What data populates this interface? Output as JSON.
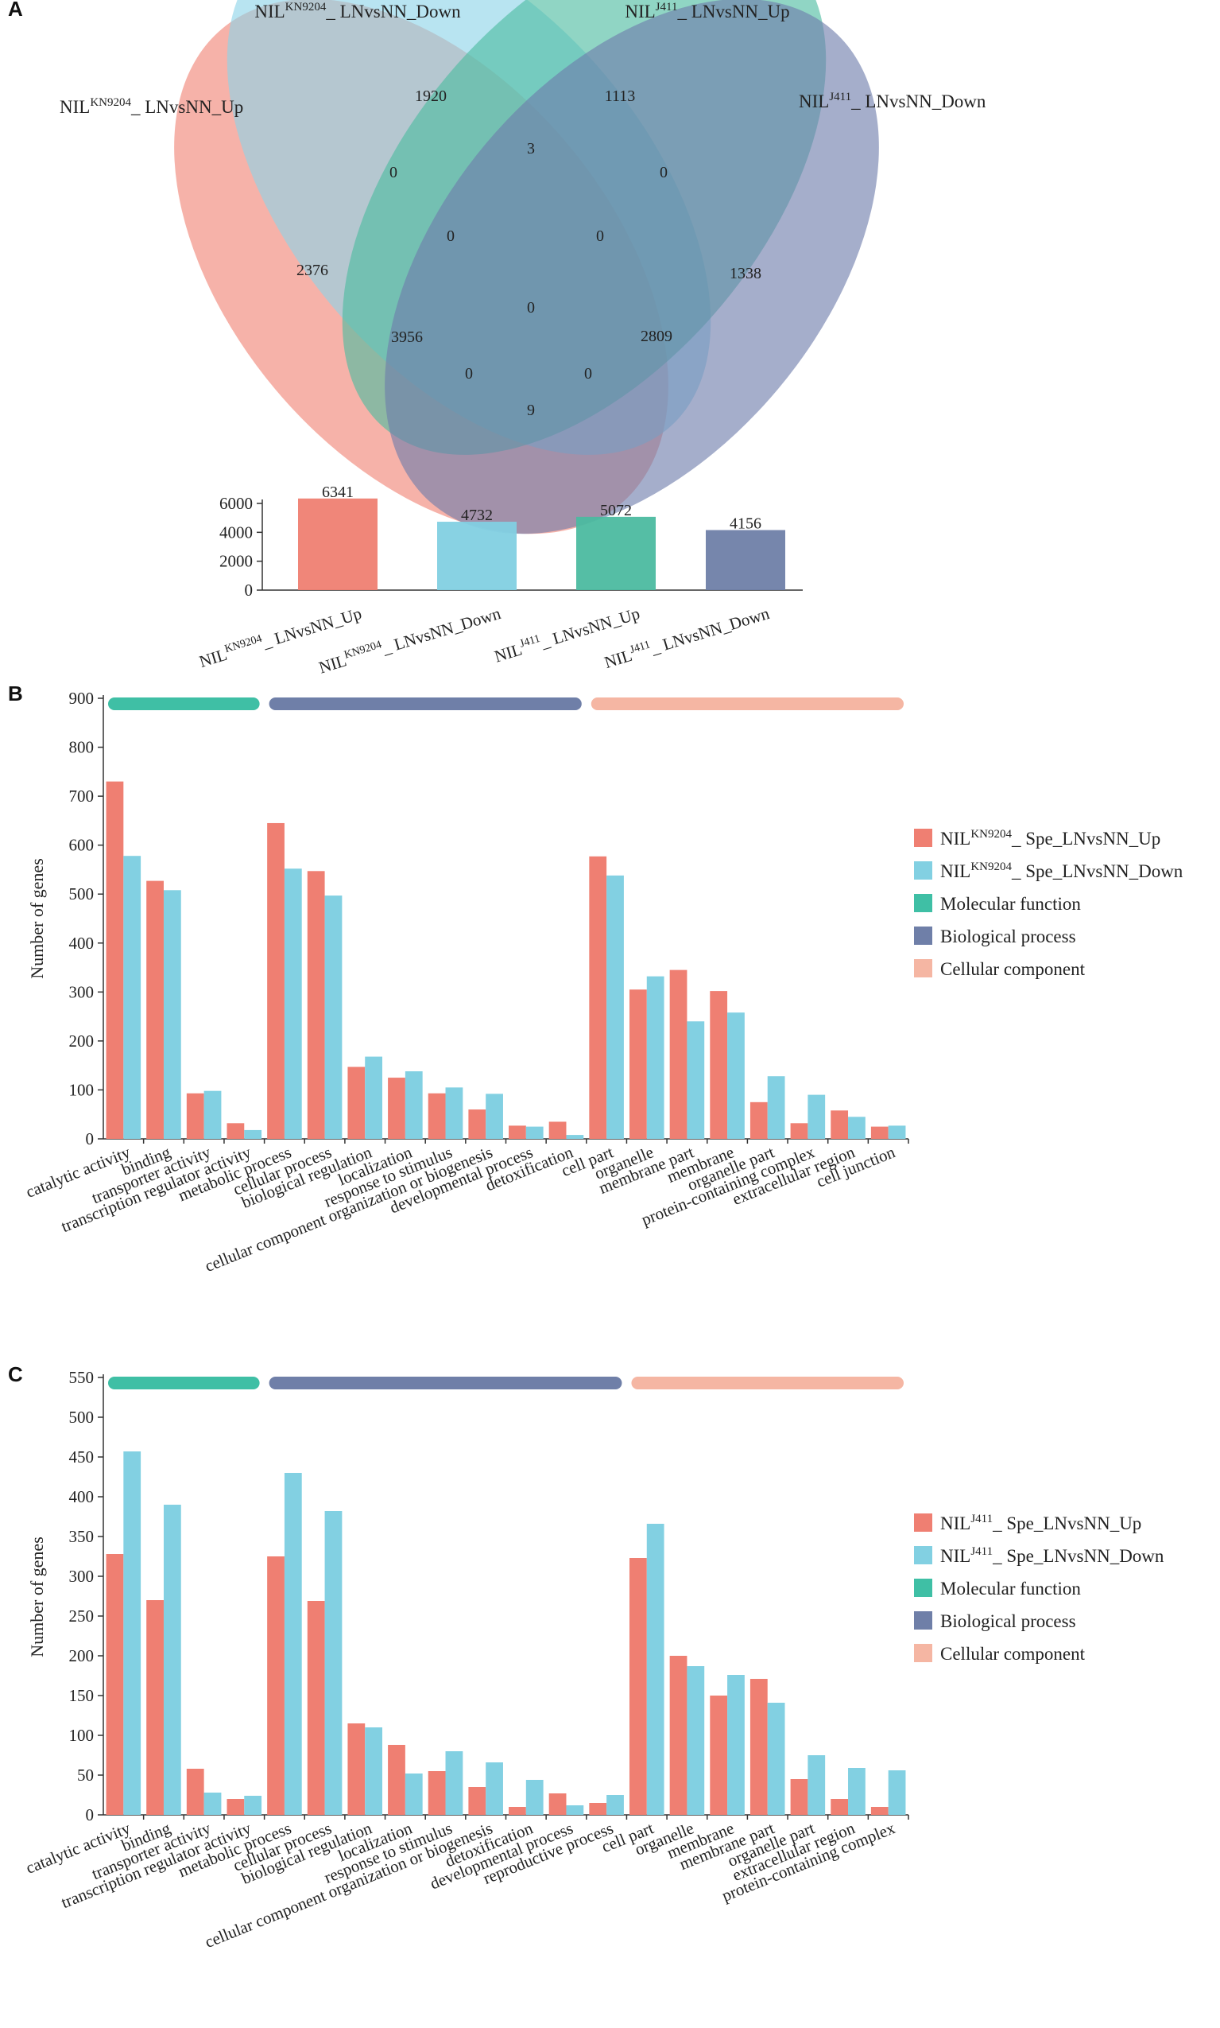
{
  "panel_labels": [
    "A",
    "B",
    "C"
  ],
  "colors": {
    "red": "#ef7f72",
    "blue": "#82d0e2",
    "green": "#3fbfa5",
    "navy": "#6f7fa8",
    "peach": "#f5b6a3",
    "venn_red": "#f08374",
    "venn_blue": "#8dd3e8",
    "venn_green": "#4cbba0",
    "venn_navy": "#6e7cab"
  },
  "chart_data": [
    {
      "type": "venn",
      "sets": [
        {
          "base": "NIL",
          "sup": "KN9204",
          "suffix": "_ LNvsNN_Up"
        },
        {
          "base": "NIL",
          "sup": "KN9204",
          "suffix": "_ LNvsNN_Down"
        },
        {
          "base": "NIL",
          "sup": "J411",
          "suffix": "_ LNvsNN_Up"
        },
        {
          "base": "NIL",
          "sup": "J411",
          "suffix": "_ LNvsNN_Down"
        }
      ],
      "regions": [
        {
          "key": "A_only",
          "label": "2376"
        },
        {
          "key": "B_only",
          "label": "1920"
        },
        {
          "key": "C_only",
          "label": "1113"
        },
        {
          "key": "D_only",
          "label": "1338"
        },
        {
          "key": "BC",
          "label": "3"
        },
        {
          "key": "AB",
          "label": "0"
        },
        {
          "key": "CD",
          "label": "0"
        },
        {
          "key": "ABC",
          "label": "0"
        },
        {
          "key": "BCD",
          "label": "0"
        },
        {
          "key": "ABCD",
          "label": "0"
        },
        {
          "key": "AC",
          "label": "3956"
        },
        {
          "key": "BD",
          "label": "2809"
        },
        {
          "key": "ACD",
          "label": "0"
        },
        {
          "key": "ABD",
          "label": "0"
        },
        {
          "key": "AD",
          "label": "9"
        }
      ]
    },
    {
      "type": "bar",
      "categories": [
        {
          "base": "NIL",
          "sup": "KN9204",
          "suffix": "_ LNvsNN_Up"
        },
        {
          "base": "NIL",
          "sup": "KN9204",
          "suffix": "_ LNvsNN_Down"
        },
        {
          "base": "NIL",
          "sup": "J411",
          "suffix": "_ LNvsNN_Up"
        },
        {
          "base": "NIL",
          "sup": "J411",
          "suffix": "_ LNvsNN_Down"
        }
      ],
      "values": [
        6341,
        4732,
        5072,
        4156
      ],
      "ylim": [
        0,
        6000
      ],
      "yticks": [
        "0",
        "2000",
        "4000",
        "6000"
      ]
    },
    {
      "type": "bar",
      "ylabel": "Number of genes",
      "ylim": [
        0,
        900
      ],
      "yticks": [
        "0",
        "100",
        "200",
        "300",
        "400",
        "500",
        "600",
        "700",
        "800",
        "900"
      ],
      "categories": [
        "catalytic activity",
        "binding",
        "transporter activity",
        "transcription regulator activity",
        "metabolic process",
        "cellular process",
        "biological regulation",
        "localization",
        "response to stimulus",
        "cellular component organization or biogenesis",
        "developmental process",
        "detoxification",
        "cell part",
        "organelle",
        "membrane part",
        "membrane",
        "organelle part",
        "protein-containing complex",
        "extracellular region",
        "cell junction"
      ],
      "groups": [
        {
          "name": "Molecular function",
          "start": 0,
          "end": 3
        },
        {
          "name": "Biological process",
          "start": 4,
          "end": 11
        },
        {
          "name": "Cellular component",
          "start": 12,
          "end": 19
        }
      ],
      "series": [
        {
          "name": {
            "base": "NIL",
            "sup": "KN9204",
            "suffix": "_ Spe_LNvsNN_Up"
          },
          "values": [
            730,
            527,
            93,
            32,
            645,
            547,
            147,
            125,
            93,
            60,
            27,
            35,
            577,
            305,
            345,
            302,
            75,
            32,
            58,
            25
          ]
        },
        {
          "name": {
            "base": "NIL",
            "sup": "KN9204",
            "suffix": "_ Spe_LNvsNN_Down"
          },
          "values": [
            578,
            508,
            98,
            18,
            552,
            497,
            168,
            138,
            105,
            92,
            25,
            8,
            538,
            332,
            240,
            258,
            128,
            90,
            45,
            27
          ]
        }
      ],
      "legend": [
        {
          "base": "NIL",
          "sup": "KN9204",
          "suffix": "_ Spe_LNvsNN_Up"
        },
        {
          "base": "NIL",
          "sup": "KN9204",
          "suffix": "_ Spe_LNvsNN_Down"
        },
        {
          "base": "Molecular function",
          "sup": "",
          "suffix": ""
        },
        {
          "base": "Biological process",
          "sup": "",
          "suffix": ""
        },
        {
          "base": "Cellular component",
          "sup": "",
          "suffix": ""
        }
      ],
      "legend_position": "right"
    },
    {
      "type": "bar",
      "ylabel": "Number of genes",
      "ylim": [
        0,
        550
      ],
      "yticks": [
        "0",
        "50",
        "100",
        "150",
        "200",
        "250",
        "300",
        "350",
        "400",
        "450",
        "500",
        "550"
      ],
      "categories": [
        "catalytic activity",
        "binding",
        "transporter activity",
        "transcription regulator activity",
        "metabolic process",
        "cellular process",
        "biological regulation",
        "localization",
        "response to stimulus",
        "cellular component organization or biogenesis",
        "detoxification",
        "developmental process",
        "reproductive process",
        "cell part",
        "organelle",
        "membrane",
        "membrane part",
        "organelle part",
        "extracellular region",
        "protein-containing complex"
      ],
      "groups": [
        {
          "name": "Molecular function",
          "start": 0,
          "end": 3
        },
        {
          "name": "Biological process",
          "start": 4,
          "end": 12
        },
        {
          "name": "Cellular component",
          "start": 13,
          "end": 19
        }
      ],
      "series": [
        {
          "name": {
            "base": "NIL",
            "sup": "J411",
            "suffix": "_ Spe_LNvsNN_Up"
          },
          "values": [
            328,
            270,
            58,
            20,
            325,
            269,
            115,
            88,
            55,
            35,
            10,
            27,
            15,
            323,
            200,
            150,
            171,
            45,
            20,
            10
          ]
        },
        {
          "name": {
            "base": "NIL",
            "sup": "J411",
            "suffix": "_ Spe_LNvsNN_Down"
          },
          "values": [
            457,
            390,
            28,
            24,
            430,
            382,
            110,
            52,
            80,
            66,
            44,
            12,
            25,
            366,
            187,
            176,
            141,
            75,
            59,
            56
          ]
        }
      ],
      "legend": [
        {
          "base": "NIL",
          "sup": "J411",
          "suffix": "_ Spe_LNvsNN_Up"
        },
        {
          "base": "NIL",
          "sup": "J411",
          "suffix": "_ Spe_LNvsNN_Down"
        },
        {
          "base": "Molecular function",
          "sup": "",
          "suffix": ""
        },
        {
          "base": "Biological process",
          "sup": "",
          "suffix": ""
        },
        {
          "base": "Cellular component",
          "sup": "",
          "suffix": ""
        }
      ],
      "legend_position": "right"
    }
  ]
}
